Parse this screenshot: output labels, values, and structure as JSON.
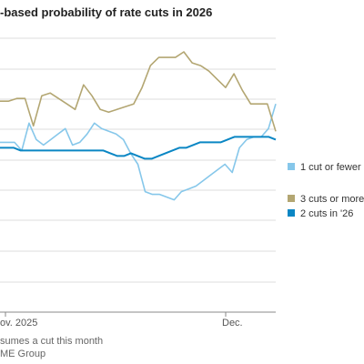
{
  "title": "-based probability of rate cuts in 2026",
  "notes": [
    "sumes a cut this month",
    "ME Group"
  ],
  "colors": {
    "grid": "#dcdcdc",
    "axis": "#888888",
    "light_blue": "#86c7ea",
    "olive": "#b3a672",
    "dark_blue": "#0a86c4"
  },
  "chart_data": {
    "type": "line",
    "title": "-based probability of rate cuts in 2026",
    "xlabel": "",
    "ylabel": "",
    "x_ticks": [
      "ov. 2025",
      "Dec."
    ],
    "grid": true,
    "legend": "right",
    "series": [
      {
        "name": "1 cut or fewer i",
        "color": "#86c7ea",
        "values": [
          38,
          38,
          38,
          41,
          31,
          37,
          39,
          37,
          35,
          33,
          39,
          38,
          35,
          31,
          33,
          34,
          35,
          37,
          42,
          46,
          56,
          57,
          57,
          58,
          59,
          56,
          55,
          54,
          52,
          50,
          48,
          46,
          49,
          40,
          37,
          36,
          36,
          33,
          24
        ]
      },
      {
        "name": "3 cuts or more",
        "color": "#b3a672",
        "values": [
          23,
          23,
          22,
          22,
          32,
          21,
          20,
          22,
          24,
          26,
          17,
          21,
          26,
          27,
          26,
          25,
          24,
          18,
          10,
          7,
          7,
          7,
          5,
          9,
          10,
          12,
          15,
          18,
          13,
          19,
          24,
          24,
          24,
          34
        ]
      },
      {
        "name": "2 cuts in '26",
        "color": "#0a86c4",
        "values": [
          40,
          40,
          40,
          41,
          41,
          41,
          41,
          41,
          41,
          41,
          41,
          41,
          41,
          41,
          41,
          41,
          42,
          43,
          43,
          42,
          43,
          44,
          44,
          43,
          42,
          41,
          40,
          40,
          39,
          38,
          38,
          38,
          38,
          37,
          36,
          36,
          36,
          36,
          36,
          36,
          37
        ]
      }
    ],
    "legend_labels": [
      "1 cut or fewer i",
      "3 cuts or more",
      "2 cuts in '26"
    ]
  }
}
